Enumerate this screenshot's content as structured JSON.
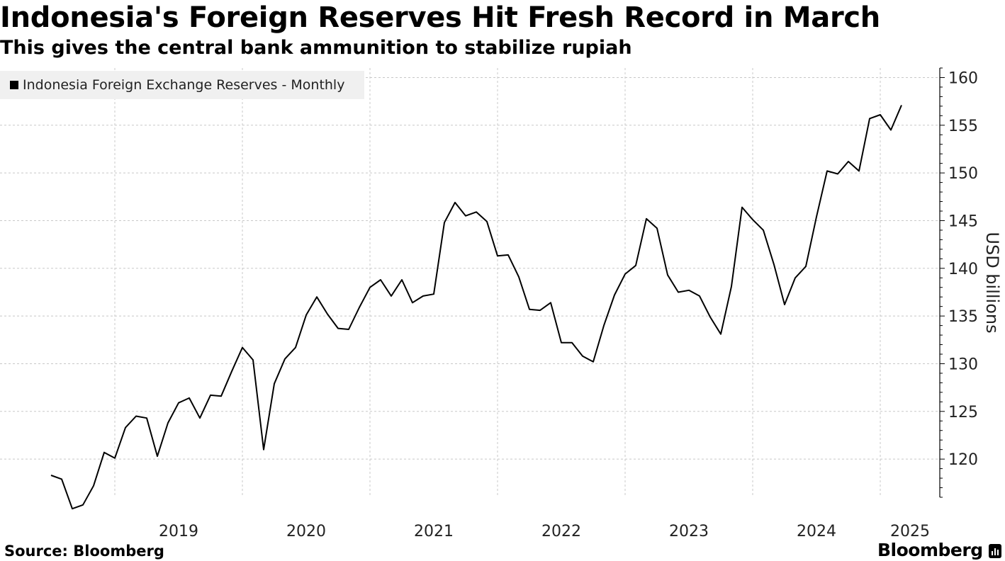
{
  "header": {
    "title": "Indonesia's Foreign Reserves Hit Fresh Record in March",
    "subtitle": "This gives the central bank ammunition to stabilize rupiah"
  },
  "legend": {
    "label": "Indonesia Foreign Exchange Reserves - Monthly"
  },
  "footer": {
    "source": "Source: Bloomberg",
    "brand": "Bloomberg",
    "brand_icon": "bloomberg-terminal-icon"
  },
  "colors": {
    "line": "#000000",
    "grid": "#c8c8c8",
    "legend_bg": "#f0f0f0"
  },
  "chart_data": {
    "type": "line",
    "title": "Indonesia's Foreign Reserves Hit Fresh Record in March",
    "subtitle": "This gives the central bank ammunition to stabilize rupiah",
    "ylabel": "USD billions",
    "xlabel": "",
    "ylim": [
      116,
      161
    ],
    "yticks": [
      120,
      125,
      130,
      135,
      140,
      145,
      150,
      155,
      160
    ],
    "y_axis_position": "right",
    "grid": true,
    "legend_position": "top-left",
    "x_tick_labels": [
      "2019",
      "2020",
      "2021",
      "2022",
      "2023",
      "2024",
      "2025"
    ],
    "x": [
      "2018-07",
      "2018-08",
      "2018-09",
      "2018-10",
      "2018-11",
      "2018-12",
      "2019-01",
      "2019-02",
      "2019-03",
      "2019-04",
      "2019-05",
      "2019-06",
      "2019-07",
      "2019-08",
      "2019-09",
      "2019-10",
      "2019-11",
      "2019-12",
      "2020-01",
      "2020-02",
      "2020-03",
      "2020-04",
      "2020-05",
      "2020-06",
      "2020-07",
      "2020-08",
      "2020-09",
      "2020-10",
      "2020-11",
      "2020-12",
      "2021-01",
      "2021-02",
      "2021-03",
      "2021-04",
      "2021-05",
      "2021-06",
      "2021-07",
      "2021-08",
      "2021-09",
      "2021-10",
      "2021-11",
      "2021-12",
      "2022-01",
      "2022-02",
      "2022-03",
      "2022-04",
      "2022-05",
      "2022-06",
      "2022-07",
      "2022-08",
      "2022-09",
      "2022-10",
      "2022-11",
      "2022-12",
      "2023-01",
      "2023-02",
      "2023-03",
      "2023-04",
      "2023-05",
      "2023-06",
      "2023-07",
      "2023-08",
      "2023-09",
      "2023-10",
      "2023-11",
      "2023-12",
      "2024-01",
      "2024-02",
      "2024-03",
      "2024-04",
      "2024-05",
      "2024-06",
      "2024-07",
      "2024-08",
      "2024-09",
      "2024-10",
      "2024-11",
      "2024-12",
      "2025-01",
      "2025-02",
      "2025-03"
    ],
    "series": [
      {
        "name": "Indonesia Foreign Exchange Reserves - Monthly",
        "values": [
          118.3,
          117.9,
          114.8,
          115.2,
          117.2,
          120.7,
          120.1,
          123.3,
          124.5,
          124.3,
          120.3,
          123.8,
          125.9,
          126.4,
          124.3,
          126.7,
          126.6,
          129.2,
          131.7,
          130.4,
          121.0,
          127.9,
          130.5,
          131.7,
          135.1,
          137.0,
          135.2,
          133.7,
          133.6,
          135.9,
          138.0,
          138.8,
          137.1,
          138.8,
          136.4,
          137.1,
          137.3,
          144.8,
          146.9,
          145.5,
          145.9,
          144.9,
          141.3,
          141.4,
          139.1,
          135.7,
          135.6,
          136.4,
          132.2,
          132.2,
          130.8,
          130.2,
          134.0,
          137.2,
          139.4,
          140.3,
          145.2,
          144.2,
          139.3,
          137.5,
          137.7,
          137.1,
          134.9,
          133.1,
          138.1,
          146.4,
          145.1,
          144.0,
          140.4,
          136.2,
          139.0,
          140.2,
          145.4,
          150.2,
          149.9,
          151.2,
          150.2,
          155.7,
          156.1,
          154.5,
          157.1
        ]
      }
    ]
  }
}
